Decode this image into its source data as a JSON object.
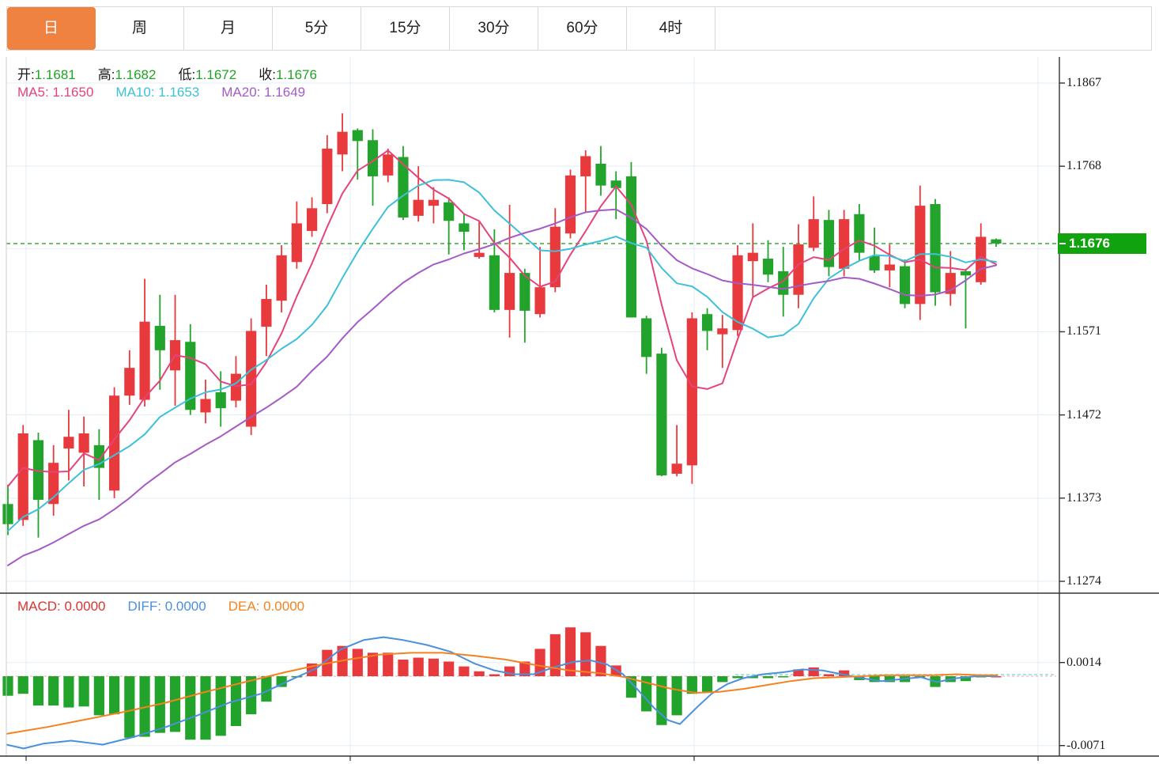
{
  "header": {
    "tabs": [
      {
        "label": "日",
        "name": "day",
        "active": true
      },
      {
        "label": "周",
        "name": "week",
        "active": false
      },
      {
        "label": "月",
        "name": "month",
        "active": false
      },
      {
        "label": "5分",
        "name": "5min",
        "active": false
      },
      {
        "label": "15分",
        "name": "15min",
        "active": false
      },
      {
        "label": "30分",
        "name": "30min",
        "active": false
      },
      {
        "label": "60分",
        "name": "60min",
        "active": false
      },
      {
        "label": "4时",
        "name": "4hour",
        "active": false
      }
    ],
    "active_bg": "#ef8240"
  },
  "indicator_bar": {
    "ohlc": [
      {
        "label": "开:",
        "value": "1.1681"
      },
      {
        "label": "高:",
        "value": "1.1682"
      },
      {
        "label": "低:",
        "value": "1.1672"
      },
      {
        "label": "收:",
        "value": "1.1676"
      }
    ],
    "ohlc_value_color": "#21a326",
    "ma": [
      {
        "label": "MA5:",
        "value": "1.1650",
        "color": "#e5437d"
      },
      {
        "label": "MA10:",
        "value": "1.1653",
        "color": "#3ec0d8"
      },
      {
        "label": "MA20:",
        "value": "1.1649",
        "color": "#a55bc4"
      }
    ]
  },
  "macd_bar": {
    "items": [
      {
        "label": "MACD:",
        "value": "0.0000",
        "color": "#dc3430"
      },
      {
        "label": "DIFF:",
        "value": "0.0000",
        "color": "#4a90dd"
      },
      {
        "label": "DEA:",
        "value": "0.0000",
        "color": "#f58220"
      }
    ]
  },
  "price_axis": {
    "ticks": [
      1.1867,
      1.1768,
      1.1571,
      1.1472,
      1.1373,
      1.1274
    ],
    "hidden_tick": 1.167,
    "current": {
      "value": "1.1676",
      "price": 1.1676,
      "bg": "#10a30e"
    }
  },
  "macd_axis": {
    "ticks": [
      0.0014,
      -0.0071
    ]
  },
  "colors": {
    "up": "#e8393c",
    "down": "#22a32b",
    "ma5": "#e5437d",
    "ma10": "#3ec0d8",
    "ma20": "#a55bc4",
    "diff": "#4a90dd",
    "dea": "#f58220",
    "grid": "#e3edf4",
    "axis": "#333333",
    "current_line": "#28a228",
    "zero_dash_red": "#f0a8a8",
    "zero_dash_cyan": "#8fd8e6"
  },
  "chart_data": {
    "type": "candlestick",
    "title": "",
    "note": "Daily FX candles; red = up, green = down. OHLC per visible candle, left to right.",
    "ylim": [
      1.1274,
      1.1867
    ],
    "candles": [
      [
        1.1366,
        1.1389,
        1.1329,
        1.1342
      ],
      [
        1.1347,
        1.146,
        1.134,
        1.145
      ],
      [
        1.1442,
        1.1451,
        1.1326,
        1.1371
      ],
      [
        1.1366,
        1.1436,
        1.1352,
        1.1415
      ],
      [
        1.1432,
        1.1478,
        1.1394,
        1.1446
      ],
      [
        1.1427,
        1.147,
        1.1387,
        1.145
      ],
      [
        1.1436,
        1.1455,
        1.1371,
        1.1409
      ],
      [
        1.1382,
        1.1505,
        1.1373,
        1.1495
      ],
      [
        1.1495,
        1.1549,
        1.1484,
        1.1528
      ],
      [
        1.149,
        1.1634,
        1.1482,
        1.1583
      ],
      [
        1.1578,
        1.1615,
        1.1502,
        1.1549
      ],
      [
        1.1525,
        1.1615,
        1.1483,
        1.1561
      ],
      [
        1.1559,
        1.158,
        1.1472,
        1.1478
      ],
      [
        1.1475,
        1.1514,
        1.1462,
        1.1491
      ],
      [
        1.1499,
        1.1524,
        1.1458,
        1.148
      ],
      [
        1.1489,
        1.1542,
        1.1481,
        1.1521
      ],
      [
        1.1458,
        1.1587,
        1.1448,
        1.1572
      ],
      [
        1.1577,
        1.1627,
        1.1542,
        1.161
      ],
      [
        1.1608,
        1.1674,
        1.1594,
        1.1662
      ],
      [
        1.1654,
        1.1726,
        1.1646,
        1.17
      ],
      [
        1.1691,
        1.1731,
        1.1684,
        1.1718
      ],
      [
        1.1723,
        1.1805,
        1.1712,
        1.1789
      ],
      [
        1.1782,
        1.1831,
        1.1762,
        1.1809
      ],
      [
        1.1811,
        1.1813,
        1.1752,
        1.1798
      ],
      [
        1.1799,
        1.1812,
        1.1721,
        1.1756
      ],
      [
        1.1757,
        1.1789,
        1.1749,
        1.1782
      ],
      [
        1.1779,
        1.1792,
        1.1704,
        1.1707
      ],
      [
        1.1709,
        1.1768,
        1.1702,
        1.1728
      ],
      [
        1.1721,
        1.1743,
        1.17,
        1.1728
      ],
      [
        1.1725,
        1.1731,
        1.1663,
        1.1703
      ],
      [
        1.17,
        1.1712,
        1.1668,
        1.169
      ],
      [
        1.166,
        1.1702,
        1.1658,
        1.1665
      ],
      [
        1.1662,
        1.1693,
        1.1594,
        1.1597
      ],
      [
        1.1597,
        1.1722,
        1.1564,
        1.1641
      ],
      [
        1.1641,
        1.1646,
        1.1558,
        1.1596
      ],
      [
        1.1592,
        1.1672,
        1.1588,
        1.1624
      ],
      [
        1.1624,
        1.1718,
        1.1618,
        1.1696
      ],
      [
        1.1688,
        1.1764,
        1.1682,
        1.1757
      ],
      [
        1.1756,
        1.1787,
        1.1714,
        1.178
      ],
      [
        1.1771,
        1.1792,
        1.1733,
        1.1745
      ],
      [
        1.1751,
        1.1762,
        1.1705,
        1.1742
      ],
      [
        1.1756,
        1.1773,
        1.1588,
        1.1588
      ],
      [
        1.1587,
        1.159,
        1.1521,
        1.1541
      ],
      [
        1.1545,
        1.1552,
        1.1399,
        1.14
      ],
      [
        1.1402,
        1.146,
        1.1399,
        1.1414
      ],
      [
        1.1412,
        1.1594,
        1.139,
        1.1587
      ],
      [
        1.1592,
        1.1599,
        1.1549,
        1.1572
      ],
      [
        1.1568,
        1.1591,
        1.1528,
        1.1575
      ],
      [
        1.1573,
        1.1674,
        1.1566,
        1.1662
      ],
      [
        1.1655,
        1.17,
        1.1613,
        1.1665
      ],
      [
        1.1658,
        1.168,
        1.163,
        1.1639
      ],
      [
        1.1643,
        1.1672,
        1.1589,
        1.1615
      ],
      [
        1.1615,
        1.1699,
        1.1599,
        1.1675
      ],
      [
        1.1671,
        1.1732,
        1.1667,
        1.1705
      ],
      [
        1.1704,
        1.1716,
        1.1637,
        1.1648
      ],
      [
        1.1646,
        1.1716,
        1.1637,
        1.1705
      ],
      [
        1.1711,
        1.1723,
        1.1655,
        1.1665
      ],
      [
        1.1661,
        1.1695,
        1.1641,
        1.1644
      ],
      [
        1.1644,
        1.1675,
        1.1624,
        1.1651
      ],
      [
        1.1649,
        1.1657,
        1.1599,
        1.1604
      ],
      [
        1.1604,
        1.1745,
        1.1585,
        1.1721
      ],
      [
        1.1723,
        1.1729,
        1.1602,
        1.1618
      ],
      [
        1.1616,
        1.1667,
        1.1602,
        1.1641
      ],
      [
        1.1643,
        1.1646,
        1.1575,
        1.1638
      ],
      [
        1.163,
        1.17,
        1.1627,
        1.1684
      ],
      [
        1.1681,
        1.1682,
        1.1672,
        1.1676
      ]
    ],
    "ma_periods": [
      5,
      10,
      20
    ],
    "ma_seed_closes": [
      1.122,
      1.123,
      1.124,
      1.1248,
      1.1252,
      1.1255,
      1.1258,
      1.126,
      1.127,
      1.1286,
      1.1285,
      1.1278,
      1.1272,
      1.128,
      1.129,
      1.134,
      1.139,
      1.142,
      1.1443
    ],
    "current_price": 1.1676,
    "macd": {
      "ylim": [
        -0.0071,
        0.0014
      ],
      "histogram": [
        -0.002,
        -0.0018,
        -0.003,
        -0.003,
        -0.0032,
        -0.0031,
        -0.004,
        -0.0039,
        -0.0063,
        -0.0062,
        -0.0058,
        -0.0057,
        -0.0065,
        -0.0065,
        -0.0061,
        -0.0051,
        -0.0039,
        -0.0026,
        -0.0011,
        -0.0001,
        0.0013,
        0.0027,
        0.0031,
        0.0028,
        0.0024,
        0.0024,
        0.0017,
        0.0019,
        0.0018,
        0.0015,
        0.001,
        0.0005,
        0.0002,
        0.001,
        0.0015,
        0.0028,
        0.0043,
        0.005,
        0.0045,
        0.0031,
        0.0011,
        -0.0022,
        -0.0036,
        -0.005,
        -0.004,
        -0.0018,
        -0.0016,
        -0.0006,
        -0.0002,
        -0.0002,
        -0.0002,
        -0.0001,
        0.0007,
        0.0009,
        0.0002,
        0.0006,
        -0.0004,
        -0.0006,
        -0.0006,
        -0.0006,
        -0.0001,
        -0.0011,
        -0.0006,
        -0.0005,
        -0.0001,
        0.0
      ],
      "diff_points": [
        [
          8,
          -0.007
        ],
        [
          30,
          -0.0074
        ],
        [
          55,
          -0.0069
        ],
        [
          90,
          -0.0066
        ],
        [
          130,
          -0.007
        ],
        [
          170,
          -0.0062
        ],
        [
          210,
          -0.0052
        ],
        [
          250,
          -0.004
        ],
        [
          290,
          -0.0027
        ],
        [
          330,
          -0.0018
        ],
        [
          370,
          -0.0003
        ],
        [
          400,
          0.0008
        ],
        [
          430,
          0.0027
        ],
        [
          460,
          0.0037
        ],
        [
          485,
          0.004
        ],
        [
          510,
          0.0037
        ],
        [
          540,
          0.0032
        ],
        [
          570,
          0.0025
        ],
        [
          600,
          0.0013
        ],
        [
          625,
          0.0006
        ],
        [
          650,
          0.0002
        ],
        [
          675,
          0.0002
        ],
        [
          700,
          0.0009
        ],
        [
          727,
          0.0015
        ],
        [
          748,
          0.0016
        ],
        [
          768,
          0.0012
        ],
        [
          788,
          0.0002
        ],
        [
          808,
          -0.0015
        ],
        [
          828,
          -0.0033
        ],
        [
          845,
          -0.0045
        ],
        [
          860,
          -0.0049
        ],
        [
          880,
          -0.0033
        ],
        [
          900,
          -0.0018
        ],
        [
          920,
          -0.0008
        ],
        [
          940,
          -0.0002
        ],
        [
          965,
          0.0002
        ],
        [
          990,
          0.0004
        ],
        [
          1015,
          0.0007
        ],
        [
          1040,
          0.0006
        ],
        [
          1065,
          0.0002
        ],
        [
          1090,
          -0.0002
        ],
        [
          1115,
          -0.0005
        ],
        [
          1140,
          -0.0003
        ],
        [
          1165,
          -0.0001
        ],
        [
          1185,
          -0.0006
        ],
        [
          1210,
          -0.0002
        ],
        [
          1235,
          0.0
        ],
        [
          1262,
          0.0
        ]
      ],
      "dea_points": [
        [
          8,
          -0.0059
        ],
        [
          60,
          -0.0052
        ],
        [
          110,
          -0.0044
        ],
        [
          160,
          -0.0036
        ],
        [
          210,
          -0.0027
        ],
        [
          260,
          -0.0016
        ],
        [
          310,
          -0.0006
        ],
        [
          360,
          0.0004
        ],
        [
          400,
          0.0011
        ],
        [
          440,
          0.0017
        ],
        [
          480,
          0.0022
        ],
        [
          520,
          0.0024
        ],
        [
          560,
          0.0024
        ],
        [
          600,
          0.0021
        ],
        [
          640,
          0.0017
        ],
        [
          680,
          0.0011
        ],
        [
          720,
          0.0006
        ],
        [
          760,
          0.0003
        ],
        [
          790,
          -0.0001
        ],
        [
          820,
          -0.0007
        ],
        [
          850,
          -0.0013
        ],
        [
          880,
          -0.0017
        ],
        [
          910,
          -0.0016
        ],
        [
          940,
          -0.0013
        ],
        [
          970,
          -0.0009
        ],
        [
          1000,
          -0.0005
        ],
        [
          1030,
          -0.0002
        ],
        [
          1060,
          -0.0001
        ],
        [
          1090,
          0.0
        ],
        [
          1120,
          0.0001
        ],
        [
          1150,
          0.0001
        ],
        [
          1180,
          0.0001
        ],
        [
          1210,
          0.0002
        ],
        [
          1240,
          0.0001
        ],
        [
          1262,
          0.0001
        ]
      ]
    }
  }
}
